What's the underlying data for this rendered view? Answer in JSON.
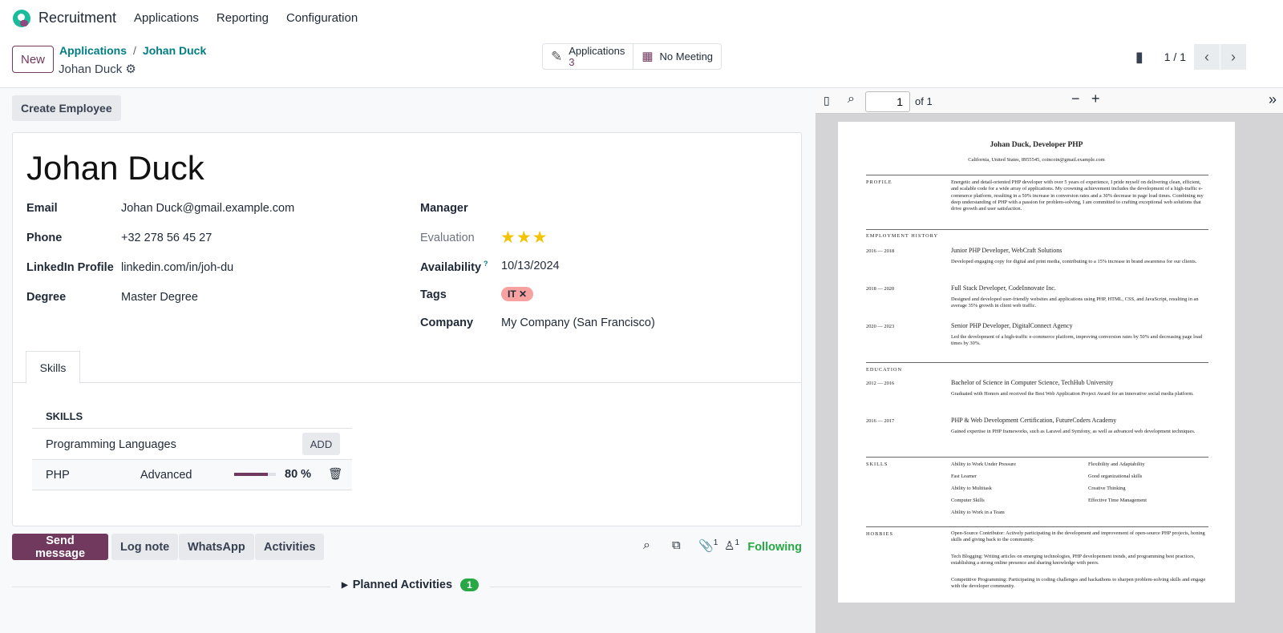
{
  "nav": {
    "app": "Recruitment",
    "menu": [
      "Applications",
      "Reporting",
      "Configuration"
    ]
  },
  "control": {
    "new": "New",
    "breadcrumb": [
      "Applications",
      "Johan Duck"
    ],
    "record": "Johan Duck",
    "smart": {
      "applications_label": "Applications",
      "applications_count": "3",
      "meeting": "No Meeting"
    },
    "pager": "1 / 1"
  },
  "form": {
    "create_employee": "Create Employee",
    "name": "Johan Duck",
    "left_fields": [
      {
        "label": "Email",
        "value": "Johan Duck@gmail.example.com"
      },
      {
        "label": "Phone",
        "value": "+32 278 56 45 27"
      },
      {
        "label": "LinkedIn Profile",
        "value": "linkedin.com/in/joh-du"
      },
      {
        "label": "Degree",
        "value": "Master Degree"
      }
    ],
    "manager_label": "Manager",
    "evaluation_label": "Evaluation",
    "evaluation_stars": 3,
    "evaluation_max": 3,
    "availability_label": "Availability",
    "availability_help": "?",
    "availability": "10/13/2024",
    "tags_label": "Tags",
    "tag": "IT",
    "tag_color": "#f7a1a1",
    "company_label": "Company",
    "company": "My Company (San Francisco)",
    "tab": "Skills",
    "skills": {
      "header": "SKILLS",
      "group": "Programming Languages",
      "add": "ADD",
      "rows": [
        {
          "skill": "PHP",
          "level": "Advanced",
          "progress": 80,
          "progress_label": "80 %"
        }
      ]
    }
  },
  "chatter": {
    "send": "Send message",
    "log": "Log note",
    "whatsapp": "WhatsApp",
    "activities": "Activities",
    "attachments": "1",
    "followers": "1",
    "following": "Following",
    "planned": "Planned Activities",
    "planned_count": "1"
  },
  "pdf": {
    "page": "1",
    "of": "of 1",
    "title": "Johan Duck, Developer PHP",
    "contact": "California, United States, 8955545, coincoin@gmail.example.com",
    "profile_h": "PROFILE",
    "profile": "Energetic and detail-oriented PHP developer with over 5 years of experience, I pride myself on delivering clean, efficient, and scalable code for a wide array of applications. My crowning achievement includes the development of a high-traffic e-commerce platform, resulting in a 50% increase in conversion rates and a 30% decrease in page load times. Combining my deep understanding of PHP with a passion for problem-solving, I am committed to crafting exceptional web solutions that drive growth and user satisfaction.",
    "employment_h": "EMPLOYMENT HISTORY",
    "employment": [
      {
        "dates": "2016 — 2018",
        "title": "Junior PHP Developer, WebCraft Solutions",
        "desc": "Developed engaging copy for digital and print media, contributing to a 15% increase in brand awareness for our clients."
      },
      {
        "dates": "2018 — 2020",
        "title": "Full Stack Developer, CodeInnovate Inc.",
        "desc": "Designed and developed user-friendly websites and applications using PHP, HTML, CSS, and JavaScript, resulting in an average 35% growth in client web traffic."
      },
      {
        "dates": "2020 — 2023",
        "title": "Senior PHP Developer, DigitalConnect Agency",
        "desc": "Led the development of a high-traffic e-commerce platform, improving conversion rates by 50% and decreasing page load times by 30%."
      }
    ],
    "education_h": "EDUCATION",
    "education": [
      {
        "dates": "2012 — 2016",
        "title": "Bachelor of Science in Computer Science, TechHub University",
        "desc": "Graduated with Honors and received the Best Web Application Project Award for an innovative social media platform."
      },
      {
        "dates": "2016 — 2017",
        "title": "PHP & Web Development Certification, FutureCoders Academy",
        "desc": "Gained expertise in PHP frameworks, such as Laravel and Symfony, as well as advanced web development techniques."
      }
    ],
    "skills_h": "SKILLS",
    "skills_col1": [
      "Ability to Work Under Pressure",
      "Fast Learner",
      "Ability to Multitask",
      "Computer Skills",
      "Ability to Work in a Team"
    ],
    "skills_col2": [
      "Flexibility and Adaptability",
      "Good organizational skills",
      "Creative Thinking",
      "Effective Time Management"
    ],
    "hobbies_h": "HOBBIES",
    "hobbies": [
      "Open-Source Contributor: Actively participating in the development and improvement of open-source PHP projects, honing skills and giving back to the community.",
      "Tech Blogging: Writing articles on emerging technologies, PHP developement trends, and programming best practices, establishing a strong online presence and sharing knowledge with peers.",
      "Competitive Programming: Participating in coding challenges and hackathons to sharpen problem-solving skills and engage with the developer community."
    ]
  },
  "colors": {
    "primary": "#71395e",
    "link": "#017e84",
    "following": "#28a745",
    "star": "#f3c200"
  }
}
